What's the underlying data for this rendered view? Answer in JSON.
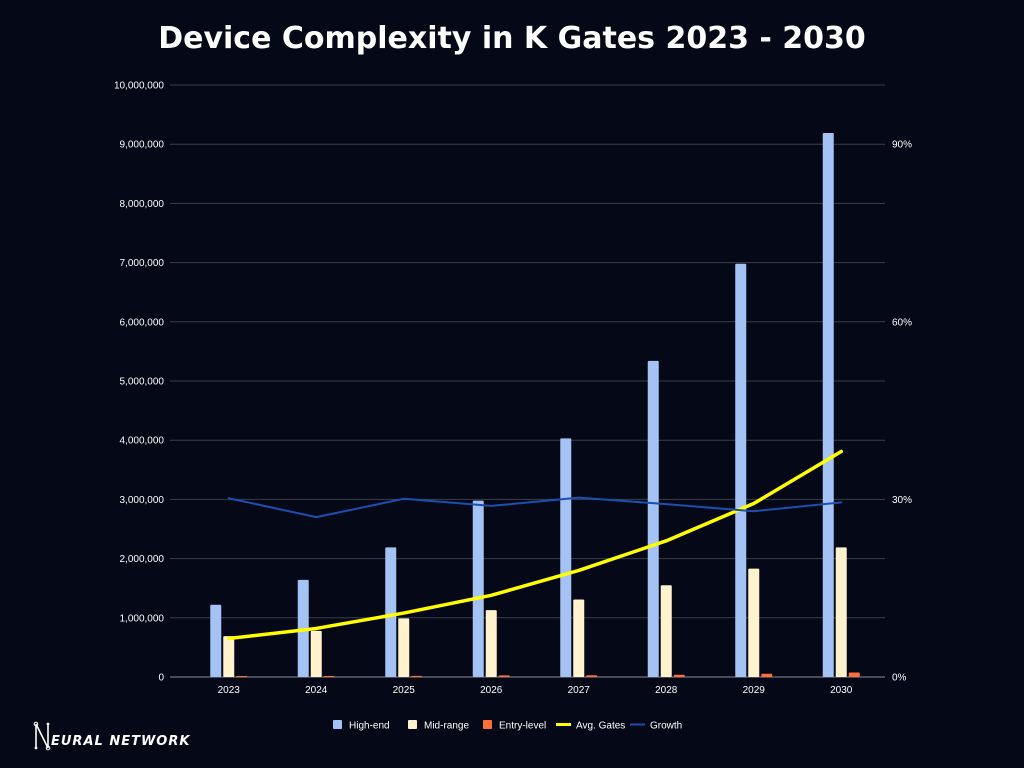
{
  "chart_data": {
    "type": "bar",
    "title": "Device Complexity in K Gates 2023 - 2030",
    "categories": [
      "2023",
      "2024",
      "2025",
      "2026",
      "2027",
      "2028",
      "2029",
      "2030"
    ],
    "series": [
      {
        "name": "High-end",
        "kind": "bar",
        "axis": "left",
        "color": "#a4c2f4",
        "values": [
          1220000,
          1640000,
          2190000,
          2980000,
          4030000,
          5340000,
          6980000,
          9190000
        ]
      },
      {
        "name": "Mid-range",
        "kind": "bar",
        "axis": "left",
        "color": "#fff2cc",
        "values": [
          690000,
          780000,
          990000,
          1130000,
          1310000,
          1550000,
          1830000,
          2190000
        ]
      },
      {
        "name": "Entry-level",
        "kind": "bar",
        "axis": "left",
        "color": "#ff6d3b",
        "values": [
          8000,
          12000,
          18000,
          28000,
          30000,
          38000,
          55000,
          75000
        ]
      },
      {
        "name": "Avg. Gates",
        "kind": "line",
        "axis": "left",
        "color": "#ffff00",
        "values": [
          650000,
          820000,
          1080000,
          1380000,
          1800000,
          2300000,
          2930000,
          3810000
        ]
      },
      {
        "name": "Growth",
        "kind": "line",
        "axis": "right",
        "color": "#1c4fb0",
        "values": [
          30.2,
          27.0,
          30.1,
          28.9,
          30.3,
          29.2,
          28.0,
          29.5
        ]
      }
    ],
    "y_left": {
      "min": 0,
      "max": 10000000,
      "step": 1000000,
      "tick_labels": [
        "0",
        "1,000,000",
        "2,000,000",
        "3,000,000",
        "4,000,000",
        "5,000,000",
        "6,000,000",
        "7,000,000",
        "8,000,000",
        "9,000,000",
        "10,000,000"
      ]
    },
    "y_right": {
      "min": 0,
      "max": 100,
      "tick_values": [
        0,
        30,
        60,
        90
      ],
      "tick_labels": [
        "0%",
        "30%",
        "60%",
        "90%"
      ]
    },
    "grid": true,
    "legend_position": "bottom"
  },
  "logo": {
    "text": "EURAL NETWORK",
    "initial": "N"
  }
}
